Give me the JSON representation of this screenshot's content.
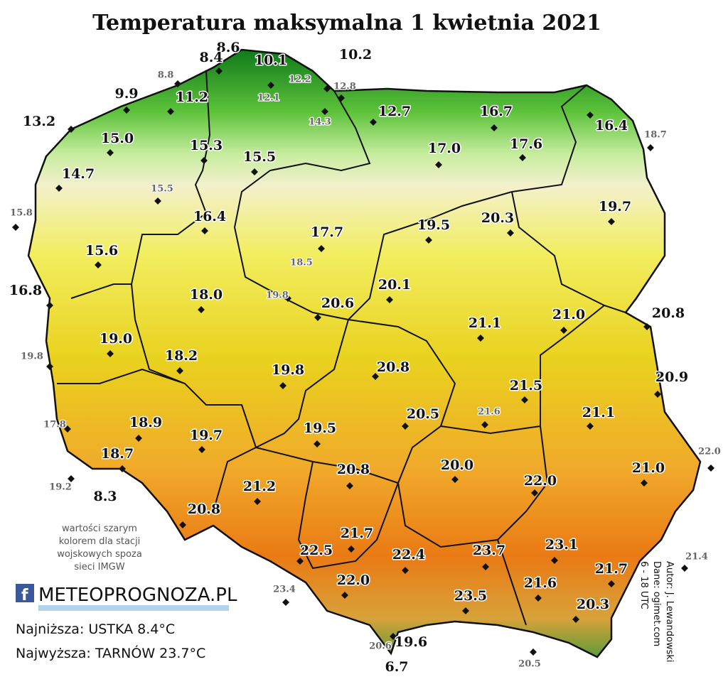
{
  "title": "Temperatura maksymalna 1 kwietnia 2021",
  "stations": [
    "8.6",
    "8.4",
    "10.1",
    "10.2",
    "8.8",
    "12.2",
    "12.1",
    "12.8",
    "9.9",
    "11.2",
    "14.3",
    "12.7",
    "16.7",
    "16.4",
    "18.7",
    "13.2",
    "15.0",
    "15.3",
    "15.5",
    "17.0",
    "17.6",
    "14.7",
    "15.5",
    "15.8",
    "19.7",
    "16.4",
    "19.5",
    "20.3",
    "17.7",
    "15.6",
    "18.5",
    "16.8",
    "18.0",
    "19.8",
    "20.6",
    "20.1",
    "21.1",
    "21.0",
    "20.8",
    "19.0",
    "19.8",
    "18.2",
    "19.8",
    "20.8",
    "20.9",
    "21.5",
    "20.5",
    "21.6",
    "21.1",
    "17.8",
    "18.9",
    "19.7",
    "19.5",
    "22.0",
    "18.7",
    "21.0",
    "20.0",
    "20.8",
    "22.0",
    "19.2",
    "8.3",
    "21.2",
    "20.8",
    "21.7",
    "23.7",
    "23.1",
    "22.5",
    "22.4",
    "21.7",
    "23.4",
    "22.0",
    "21.6",
    "23.5",
    "20.3",
    "21.4",
    "19.6",
    "20.6",
    "6.7",
    "20.5"
  ],
  "note": [
    "wartości szarym",
    "kolorem dla stacji",
    "wojskowych spoza",
    "sieci IMGW"
  ],
  "logo": "METEOPROGNOZA.PL",
  "lowest": "Najniższa: USTKA 8.4°C",
  "highest": "Najwyższa: TARNÓW 23.7°C",
  "credits": [
    "Autor: J. Lewandowski",
    "Dane: ogimet.com",
    "6 - 18 UTC"
  ]
}
